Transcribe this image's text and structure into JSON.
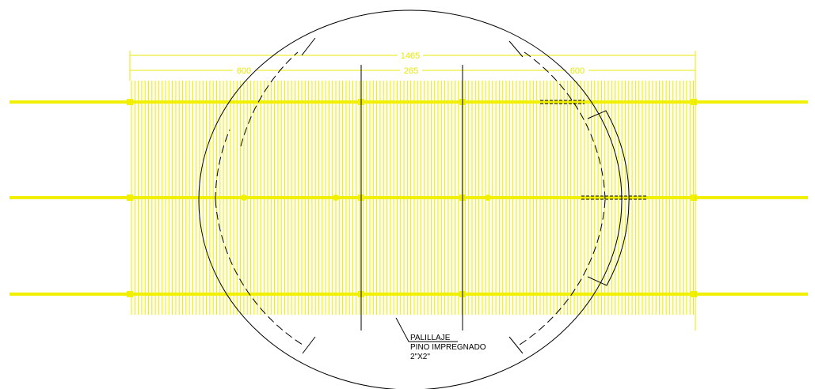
{
  "colors": {
    "background": "#ffffff",
    "pergola": "#f0f000",
    "dimension": "#e8e800",
    "outline": "#000000"
  },
  "dimensions": {
    "overall": "1465",
    "left_span": "600",
    "center_span": "265",
    "right_span": "600"
  },
  "note": {
    "line1": "PALILLAJE",
    "line2": "PINO IMPREGNADO",
    "line3": "2\"X2\""
  }
}
